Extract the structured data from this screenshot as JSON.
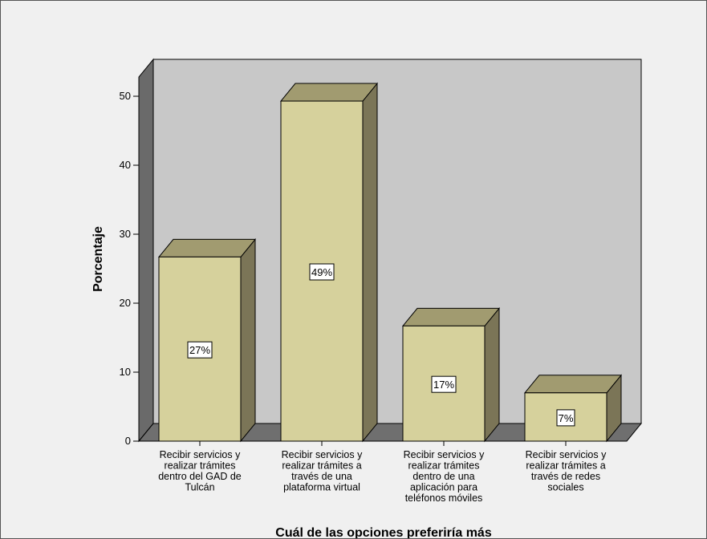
{
  "chart_data": {
    "type": "bar",
    "style": "3d",
    "categories": [
      "Recibir servicios y realizar trámites dentro del GAD de Tulcán",
      "Recibir servicios y realizar trámites a través de una plataforma virtual",
      "Recibir servicios y realizar trámites dentro de una aplicación para teléfonos móviles",
      "Recibir servicios y realizar trámites a través de redes sociales"
    ],
    "category_lines": [
      [
        "Recibir servicios y",
        "realizar trámites",
        "dentro del GAD de",
        "Tulcán"
      ],
      [
        "Recibir servicios y",
        "realizar trámites a",
        "través de una",
        "plataforma virtual"
      ],
      [
        "Recibir servicios y",
        "realizar trámites",
        "dentro de una",
        "aplicación para",
        "teléfonos móviles"
      ],
      [
        "Recibir servicios y",
        "realizar trámites a",
        "través de redes",
        "sociales"
      ]
    ],
    "values": [
      26.7,
      49.3,
      16.7,
      7.0
    ],
    "data_labels": [
      "27%",
      "49%",
      "17%",
      "7%"
    ],
    "xlabel": "Cuál de las opciones preferiría más",
    "ylabel": "Porcentaje",
    "ylim": [
      0,
      50
    ],
    "yticks": [
      0,
      10,
      20,
      30,
      40,
      50
    ],
    "grid": false,
    "colors": {
      "bar_front": "#d6d19c",
      "bar_side": "#7b7557",
      "bar_top": "#a19b70",
      "back_wall": "#c8c8c8",
      "floor": "#6f6f6f",
      "left_wall": "#6a6a6a",
      "frame_bg": "#f0f0f0"
    }
  }
}
